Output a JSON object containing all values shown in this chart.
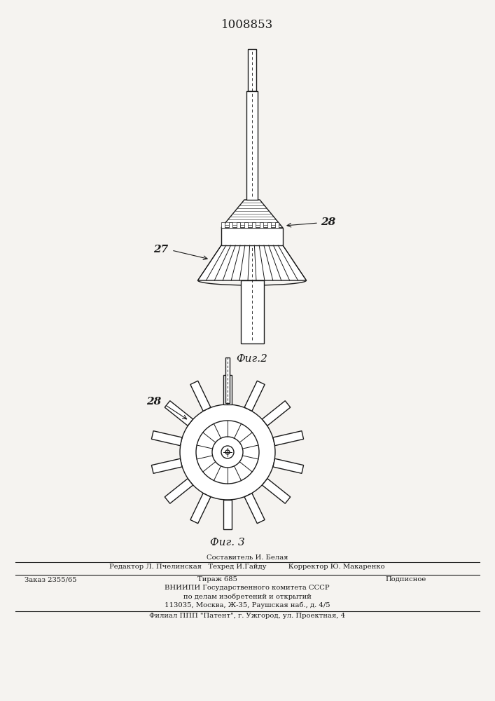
{
  "patent_number": "1008853",
  "bg_color": "#f5f3f0",
  "line_color": "#1a1a1a",
  "fig2_label": "Фиг.2",
  "fig3_label": "Фиг. 3",
  "label_27": "27",
  "label_28_fig2": "28",
  "label_28_fig3": "28",
  "footer_line1": "Составитель И. Белая",
  "footer_line2": "Редактор Л. Пчелинская   Техред И.Гайду          Корректор Ю. Макаренко",
  "footer_line3a": "Заказ 2355/65",
  "footer_line3b": "Тираж 685",
  "footer_line3c": "Подписное",
  "footer_line4": "ВНИИПИ Государственного комитета СССР",
  "footer_line5": "по делам изобретений и открытий",
  "footer_line6": "113035, Москва, Ж-35, Раушская наб., д. 4/5",
  "footer_line7": "Филиал ППП \"Патент\", г. Ужгород, ул. Проектная, 4"
}
